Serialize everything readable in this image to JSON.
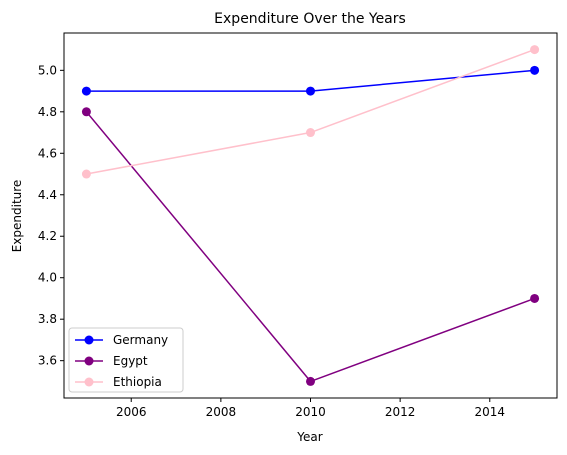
{
  "chart_data": {
    "type": "line",
    "title": "Expenditure Over the Years",
    "xlabel": "Year",
    "ylabel": "Expenditure",
    "x": [
      2005,
      2010,
      2015
    ],
    "xlim": [
      2004.5,
      2015.5
    ],
    "ylim": [
      3.42,
      5.18
    ],
    "xticks": [
      2006,
      2008,
      2010,
      2012,
      2014
    ],
    "yticks": [
      3.6,
      3.8,
      4.0,
      4.2,
      4.4,
      4.6,
      4.8,
      5.0
    ],
    "grid": false,
    "legend_position": "bottom-left",
    "series": [
      {
        "name": "Germany",
        "color": "#0000ff",
        "values": [
          4.9,
          4.9,
          5.0
        ]
      },
      {
        "name": "Egypt",
        "color": "#800080",
        "values": [
          4.8,
          3.5,
          3.9
        ]
      },
      {
        "name": "Ethiopia",
        "color": "#ffc0cb",
        "values": [
          4.5,
          4.7,
          5.1
        ]
      }
    ]
  }
}
